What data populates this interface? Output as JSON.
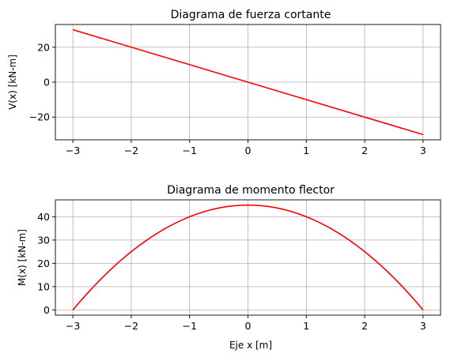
{
  "chart_data": [
    {
      "type": "line",
      "title": "Diagrama de fuerza cortante",
      "xlabel": "",
      "ylabel": "V(x) [kN-m]",
      "xlim": [
        -3.3,
        3.3
      ],
      "ylim": [
        -33,
        33
      ],
      "xticks": [
        -3,
        -2,
        -1,
        0,
        1,
        2,
        3
      ],
      "yticks": [
        -20,
        0,
        20
      ],
      "xtick_labels": [
        "−3",
        "−2",
        "−1",
        "0",
        "1",
        "2",
        "3"
      ],
      "ytick_labels": [
        "−20",
        "0",
        "20"
      ],
      "grid": true,
      "series": [
        {
          "name": "V(x)",
          "color": "#ff0000",
          "x": [
            -3,
            3
          ],
          "y": [
            30,
            -30
          ]
        }
      ]
    },
    {
      "type": "line",
      "title": "Diagrama de momento flector",
      "xlabel": "Eje x [m]",
      "ylabel": "M(x) [kN-m]",
      "xlim": [
        -3.3,
        3.3
      ],
      "ylim": [
        -2.25,
        47.25
      ],
      "xticks": [
        -3,
        -2,
        -1,
        0,
        1,
        2,
        3
      ],
      "yticks": [
        0,
        10,
        20,
        30,
        40
      ],
      "xtick_labels": [
        "−3",
        "−2",
        "−1",
        "0",
        "1",
        "2",
        "3"
      ],
      "ytick_labels": [
        "0",
        "10",
        "20",
        "30",
        "40"
      ],
      "grid": true,
      "series": [
        {
          "name": "M(x)",
          "color": "#ff0000",
          "x": [
            -3,
            -2.5,
            -2,
            -1.5,
            -1,
            -0.5,
            0,
            0.5,
            1,
            1.5,
            2,
            2.5,
            3
          ],
          "y": [
            0,
            13.75,
            25,
            33.75,
            40,
            43.75,
            45,
            43.75,
            40,
            33.75,
            25,
            13.75,
            0
          ]
        }
      ]
    }
  ]
}
